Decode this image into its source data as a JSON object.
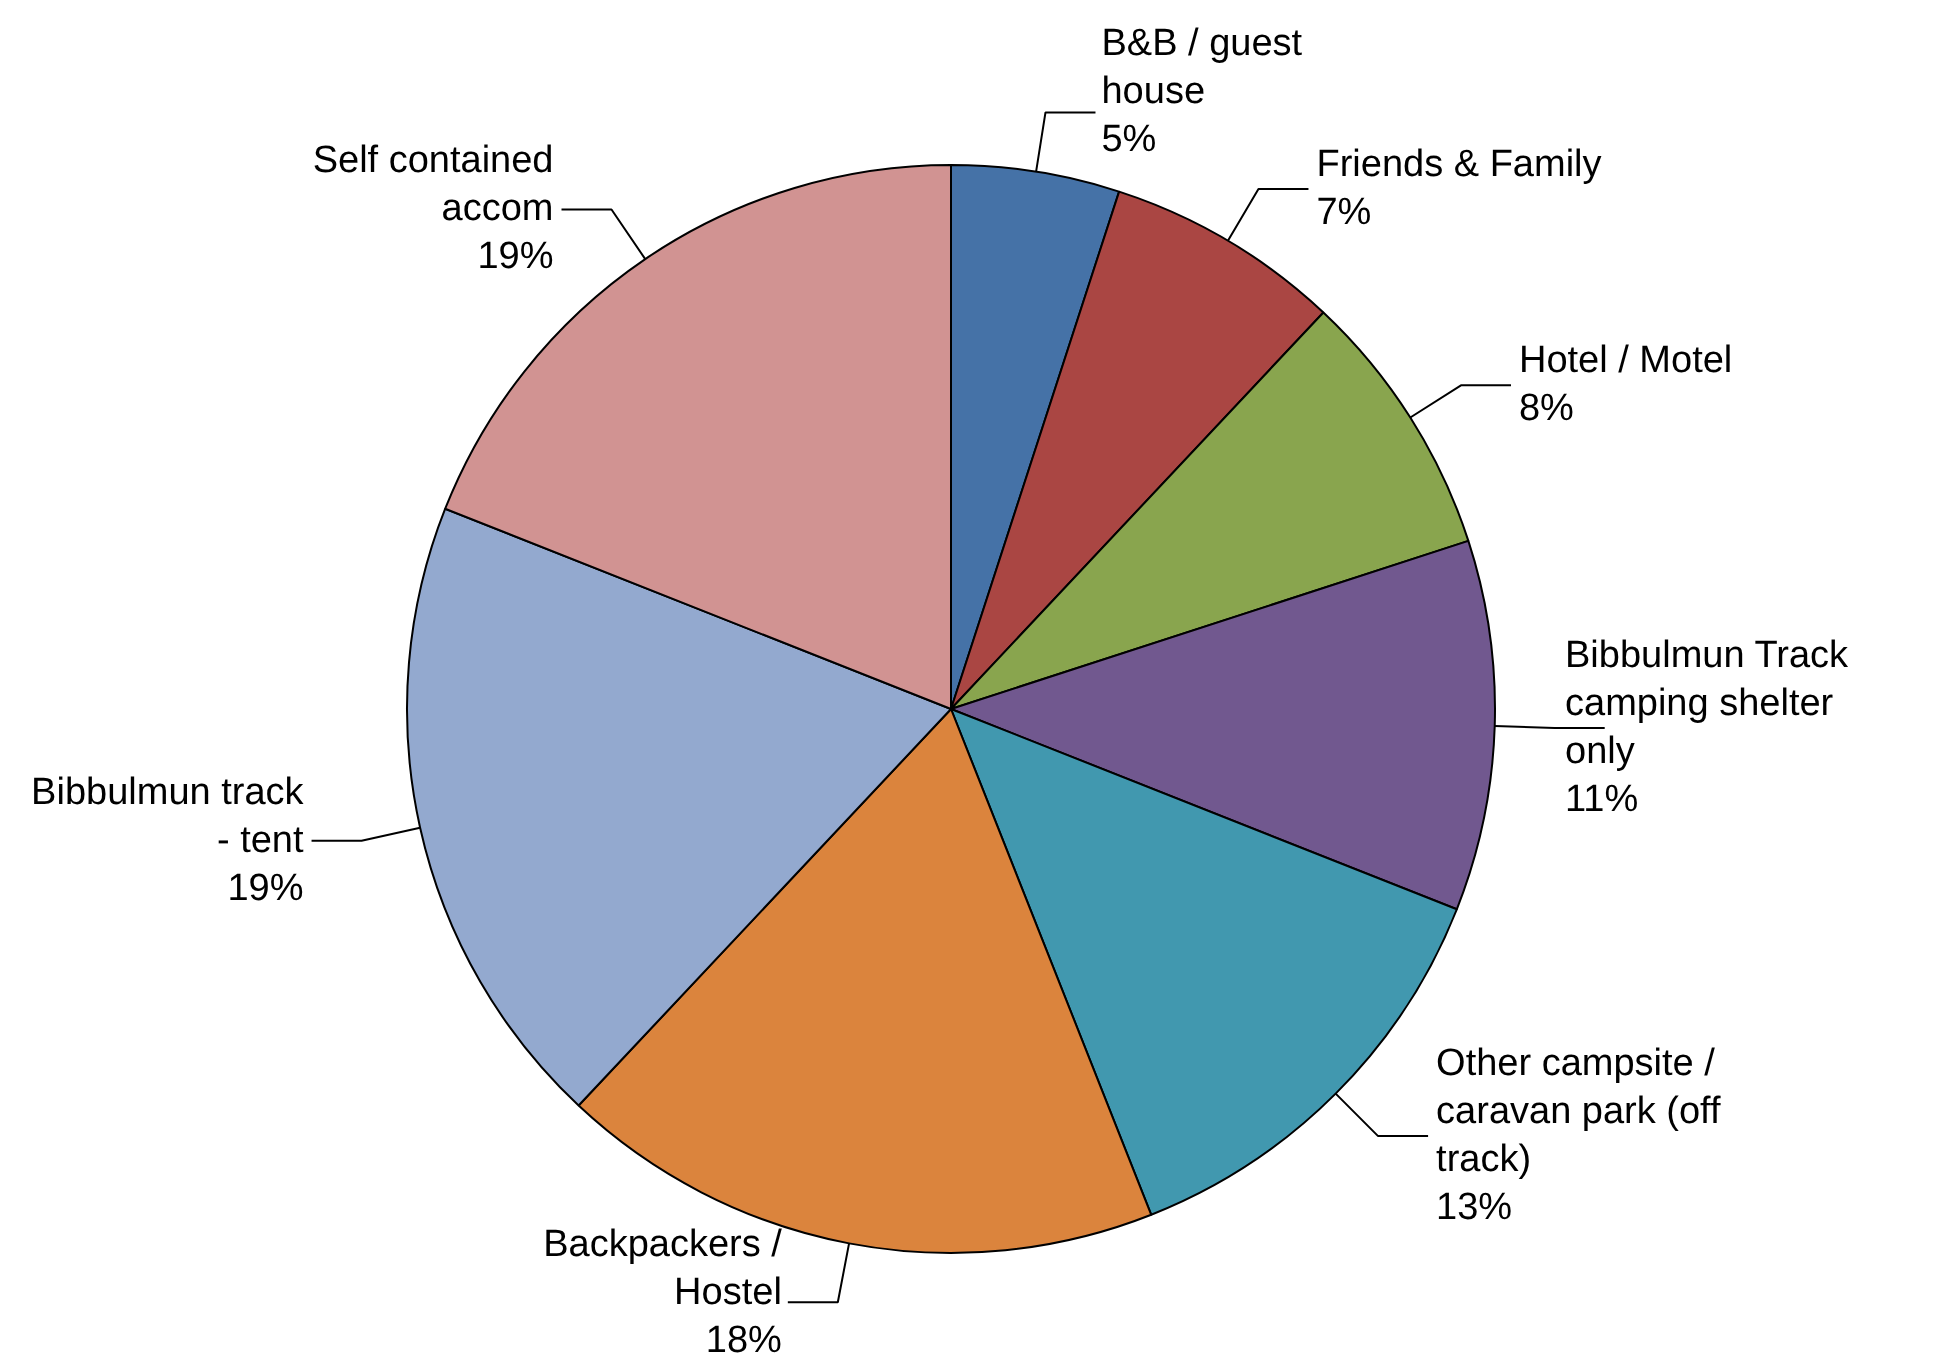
{
  "chart_data": {
    "type": "pie",
    "categories": [
      "B&B / guest\nhouse",
      "Friends & Family",
      "Hotel / Motel",
      "Bibbulmun Track\ncamping shelter\nonly",
      "Other campsite /\ncaravan park (off\ntrack)",
      "Backpackers /\nHostel",
      "Bibbulmun track\n- tent",
      "Self contained\naccom"
    ],
    "values": [
      5,
      7,
      8,
      11,
      13,
      18,
      19,
      19
    ],
    "value_labels": [
      "5%",
      "7%",
      "8%",
      "11%",
      "13%",
      "18%",
      "19%",
      "19%"
    ],
    "colors": [
      "#4572a7",
      "#aa4643",
      "#89a54e",
      "#71588f",
      "#4198af",
      "#db843d",
      "#93a9cf",
      "#d19392"
    ]
  }
}
